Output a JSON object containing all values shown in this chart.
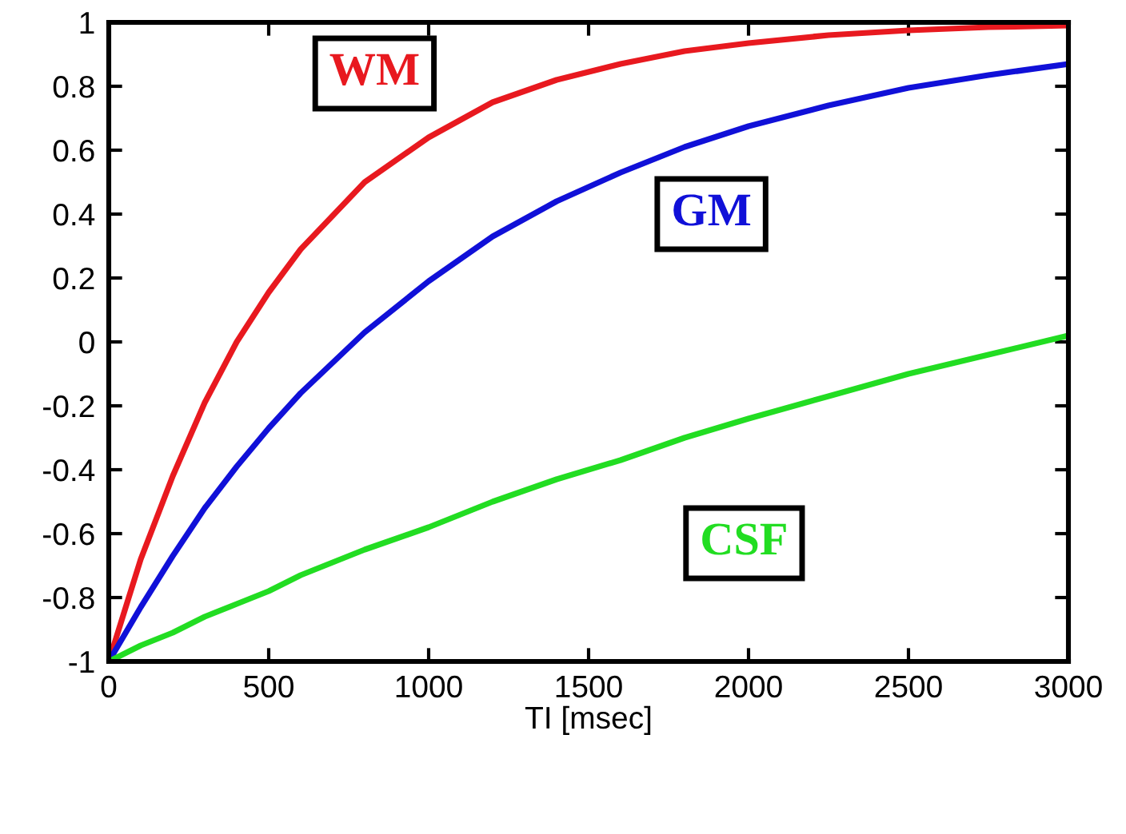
{
  "chart_data": {
    "type": "line",
    "xlabel": "TI [msec]",
    "x": [
      0,
      100,
      200,
      300,
      400,
      500,
      600,
      800,
      1000,
      1200,
      1400,
      1600,
      1800,
      2000,
      2250,
      2500,
      2750,
      3000
    ],
    "series": [
      {
        "name": "WM",
        "color": "#e8191f",
        "values": [
          -1,
          -0.68,
          -0.42,
          -0.19,
          0.0,
          0.155,
          0.29,
          0.5,
          0.64,
          0.75,
          0.82,
          0.87,
          0.91,
          0.935,
          0.96,
          0.975,
          0.985,
          0.99
        ]
      },
      {
        "name": "GM",
        "color": "#1010d8",
        "values": [
          -1,
          -0.83,
          -0.67,
          -0.52,
          -0.39,
          -0.27,
          -0.16,
          0.03,
          0.19,
          0.33,
          0.44,
          0.53,
          0.61,
          0.675,
          0.74,
          0.795,
          0.835,
          0.87
        ]
      },
      {
        "name": "CSF",
        "color": "#22dd22",
        "values": [
          -1,
          -0.95,
          -0.91,
          -0.86,
          -0.82,
          -0.78,
          -0.73,
          -0.65,
          -0.58,
          -0.5,
          -0.43,
          -0.37,
          -0.3,
          -0.24,
          -0.17,
          -0.1,
          -0.04,
          0.02
        ]
      }
    ],
    "xlim": [
      0,
      3000
    ],
    "ylim": [
      -1,
      1
    ],
    "xticks": [
      0,
      500,
      1000,
      1500,
      2000,
      2500,
      3000
    ],
    "yticks": [
      {
        "value": -1,
        "label": "-1"
      },
      {
        "value": -0.8,
        "label": "-0.8"
      },
      {
        "value": -0.6,
        "label": "-0.6"
      },
      {
        "value": -0.4,
        "label": "-0.4"
      },
      {
        "value": -0.2,
        "label": "-0.2"
      },
      0,
      0.2,
      0.4,
      0.6,
      0.8,
      1
    ],
    "grid": false,
    "legend": false,
    "marker": "none",
    "line_style": "solid"
  }
}
